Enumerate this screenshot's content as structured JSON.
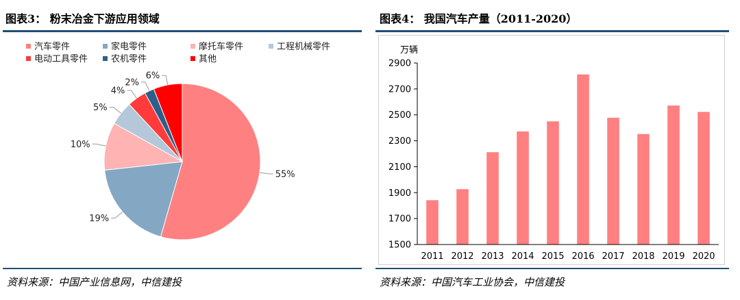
{
  "left": {
    "title": "图表3：  粉末冶金下游应用领域",
    "source": "资料来源：中国产业信息网，中信建投"
  },
  "right": {
    "title": "图表4：  我国汽车产量（2011-2020）",
    "source": "资料来源：中国汽车工业协会，中信建投"
  },
  "chart_data": [
    {
      "type": "pie",
      "title": "",
      "legend_position": "top",
      "slices": [
        {
          "name": "汽车零件",
          "value": 55,
          "label": "55%",
          "color": "#ff8080"
        },
        {
          "name": "家电零件",
          "value": 19,
          "label": "19%",
          "color": "#84a7c4"
        },
        {
          "name": "摩托车零件",
          "value": 10,
          "label": "10%",
          "color": "#ffb3b3"
        },
        {
          "name": "工程机械零件",
          "value": 5,
          "label": "5%",
          "color": "#b4c8d9"
        },
        {
          "name": "电动工具零件",
          "value": 4,
          "label": "4%",
          "color": "#ff3b3b"
        },
        {
          "name": "农机零件",
          "value": 2,
          "label": "2%",
          "color": "#2e5f8a"
        },
        {
          "name": "其他",
          "value": 6,
          "label": "6%",
          "color": "#ff0000"
        }
      ]
    },
    {
      "type": "bar",
      "title": "",
      "ylabel": "万辆",
      "categories": [
        "2011",
        "2012",
        "2013",
        "2014",
        "2015",
        "2016",
        "2017",
        "2018",
        "2019",
        "2020"
      ],
      "values": [
        1842,
        1927,
        2212,
        2372,
        2450,
        2812,
        2478,
        2352,
        2572,
        2523
      ],
      "ylim": [
        1500,
        2900
      ],
      "yticks": [
        "1500",
        "1700",
        "1900",
        "2100",
        "2300",
        "2500",
        "2700",
        "2900"
      ],
      "bar_color": "#ff8080",
      "grid": false
    }
  ]
}
